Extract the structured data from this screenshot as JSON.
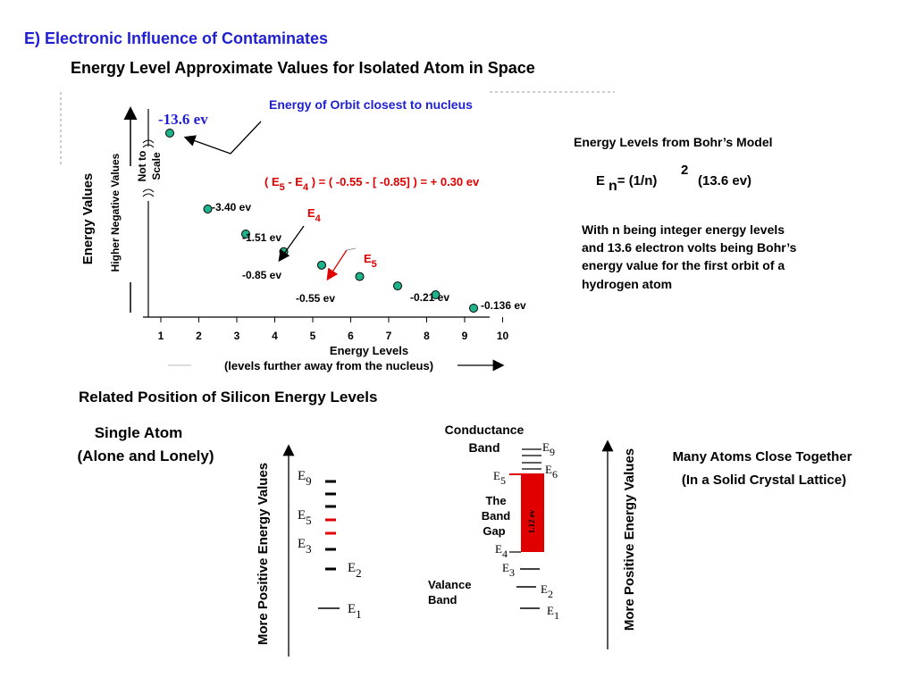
{
  "section_title": "E) Electronic Influence of Contaminates",
  "main_title": "Energy Level Approximate Values for Isolated Atom in Space",
  "chart": {
    "orbit_note": "Energy of Orbit closest to nucleus",
    "top_value": "-13.6 ev",
    "y_label": "Energy Values",
    "y_sublabel": "Higher Negative Values",
    "not_to_scale_1": "Not to",
    "not_to_scale_2": "Scale",
    "equation": "( E5 - E4 ) = ( -0.55 - [ -0.85] ) = + 0.30 ev",
    "eq_parts": {
      "open": "( E",
      "sub5": "5",
      "minus": " - E",
      "sub4": "4",
      "rest": " ) =  ( -0.55 - [ -0.85] ) = + 0.30 ev"
    },
    "e4_label": {
      "letter": "E",
      "sub": "4"
    },
    "e5_label": {
      "letter": "E",
      "sub": "5"
    },
    "x_label": "Energy Levels",
    "x_sublabel": "(levels further away from the nucleus)",
    "point_labels": [
      "-3.40 ev",
      "-1.51 ev",
      "-0.85 ev",
      "-0.55 ev",
      "-0.21 ev",
      "-0.136 ev"
    ],
    "x_ticks": [
      "1",
      "2",
      "3",
      "4",
      "5",
      "6",
      "7",
      "8",
      "9",
      "10"
    ]
  },
  "chart_data": {
    "type": "scatter",
    "title": "",
    "xlabel": "Energy Levels",
    "ylabel": "Energy Values",
    "x": [
      1,
      2,
      3,
      4,
      5,
      6,
      7,
      8,
      9
    ],
    "y": [
      -13.6,
      -3.4,
      -1.51,
      -0.85,
      -0.55,
      -0.38,
      -0.28,
      -0.21,
      -0.136
    ],
    "xlim": [
      1,
      10
    ],
    "series": [
      {
        "values": [
          -13.6,
          -3.4,
          -1.51,
          -0.85,
          -0.55,
          -0.38,
          -0.28,
          -0.21,
          -0.136
        ]
      }
    ],
    "point_color": "#1fb38c"
  },
  "bohr": {
    "title": "Energy Levels from Bohr’s Model",
    "e": "E",
    "n": "n",
    "eq": "= (1/n)",
    "sup": "2",
    "val": "(13.6 ev)",
    "desc": [
      "With n being integer energy levels",
      "and 13.6 electron volts being Bohr’s",
      "energy value for the first orbit of a",
      "hydrogen atom"
    ]
  },
  "silicon": {
    "title": "Related Position of Silicon Energy Levels",
    "single_atom_1": "Single Atom",
    "single_atom_2": "(Alone and Lonely)",
    "axis_label": "More Positive Energy Values",
    "levels_left": [
      {
        "l": "E",
        "s": "9"
      },
      {
        "l": "E",
        "s": "5"
      },
      {
        "l": "E",
        "s": "3"
      },
      {
        "l": "E",
        "s": "2"
      },
      {
        "l": "E",
        "s": "1"
      }
    ],
    "conductance_1": "Conductance",
    "conductance_2": "Band",
    "band_gap": [
      "The",
      "Band",
      "Gap"
    ],
    "gap_value": "1.12 ev",
    "valance_1": "Valance",
    "valance_2": "Band",
    "levels_right": [
      {
        "l": "E",
        "s": "9"
      },
      {
        "l": "E",
        "s": "5"
      },
      {
        "l": "E",
        "s": "6"
      },
      {
        "l": "E",
        "s": "4"
      },
      {
        "l": "E",
        "s": "3"
      },
      {
        "l": "E",
        "s": "2"
      },
      {
        "l": "E",
        "s": "1"
      }
    ],
    "many_atoms_1": "Many Atoms Close Together",
    "many_atoms_2": "(In a Solid Crystal Lattice)"
  },
  "colors": {
    "accent_blue": "#1f1fd0",
    "accent_red": "#e00000",
    "point": "#1fb38c"
  }
}
